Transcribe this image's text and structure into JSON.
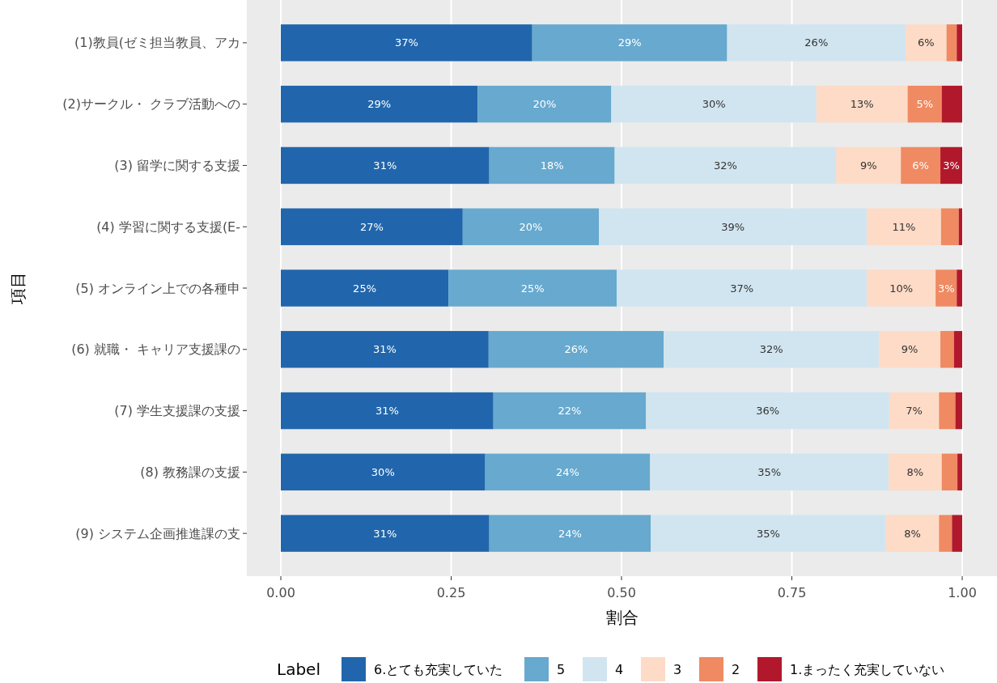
{
  "chart_data": {
    "type": "bar",
    "orientation": "horizontal",
    "stacked": true,
    "xlabel": "割合",
    "ylabel": "項目",
    "legend_title": "Label",
    "legend": "bottom",
    "grid": "x",
    "categories": [
      "(1)教員(ゼミ担当教員、アカ",
      "(2)サークル・ クラブ活動への",
      "(3) 留学に関する支援",
      "(4) 学習に関する支援(E-",
      "(5) オンライン上での各種申",
      "(6) 就職・ キャリア支援課の",
      "(7) 学生支援課の支援",
      "(8) 教務課の支援",
      "(9) システム企画推進課の支"
    ],
    "xlim": [
      0,
      1
    ],
    "xticks": [
      {
        "value": 0,
        "label": "0.00"
      },
      {
        "value": 0.25,
        "label": "0.25"
      },
      {
        "value": 0.5,
        "label": "0.50"
      },
      {
        "value": 0.75,
        "label": "0.75"
      },
      {
        "value": 1,
        "label": "1.00"
      }
    ],
    "series": [
      {
        "name": "6.とても充実していた",
        "color": "#2166ac",
        "values": [
          0.369,
          0.289,
          0.306,
          0.267,
          0.246,
          0.305,
          0.312,
          0.3,
          0.306
        ],
        "value_labels": [
          "37%",
          "29%",
          "31%",
          "27%",
          "25%",
          "31%",
          "31%",
          "30%",
          "31%"
        ]
      },
      {
        "name": "5",
        "color": "#67a9cf",
        "values": [
          0.286,
          0.196,
          0.184,
          0.2,
          0.247,
          0.257,
          0.224,
          0.242,
          0.237
        ],
        "value_labels": [
          "29%",
          "20%",
          "18%",
          "20%",
          "25%",
          "26%",
          "22%",
          "24%",
          "24%"
        ]
      },
      {
        "name": "4",
        "color": "#d1e5f0",
        "values": [
          0.262,
          0.301,
          0.325,
          0.393,
          0.367,
          0.316,
          0.357,
          0.35,
          0.345
        ],
        "value_labels": [
          "26%",
          "30%",
          "32%",
          "39%",
          "37%",
          "32%",
          "36%",
          "35%",
          "35%"
        ]
      },
      {
        "name": "3",
        "color": "#fddbc7",
        "values": [
          0.06,
          0.134,
          0.095,
          0.109,
          0.101,
          0.09,
          0.073,
          0.078,
          0.078
        ],
        "value_labels": [
          "6%",
          "13%",
          "9%",
          "11%",
          "10%",
          "9%",
          "7%",
          "8%",
          "8%"
        ]
      },
      {
        "name": "2",
        "color": "#ef8a62",
        "values": [
          0.015,
          0.05,
          0.058,
          0.026,
          0.031,
          0.02,
          0.024,
          0.023,
          0.019
        ],
        "value_labels": [
          null,
          "5%",
          "6%",
          null,
          "3%",
          null,
          null,
          null,
          null
        ]
      },
      {
        "name": "1.まったく充実していない",
        "color": "#b2182b",
        "values": [
          0.008,
          0.03,
          0.032,
          0.005,
          0.008,
          0.012,
          0.01,
          0.007,
          0.015
        ],
        "value_labels": [
          null,
          null,
          "3%",
          null,
          null,
          null,
          null,
          null,
          null
        ]
      }
    ]
  }
}
